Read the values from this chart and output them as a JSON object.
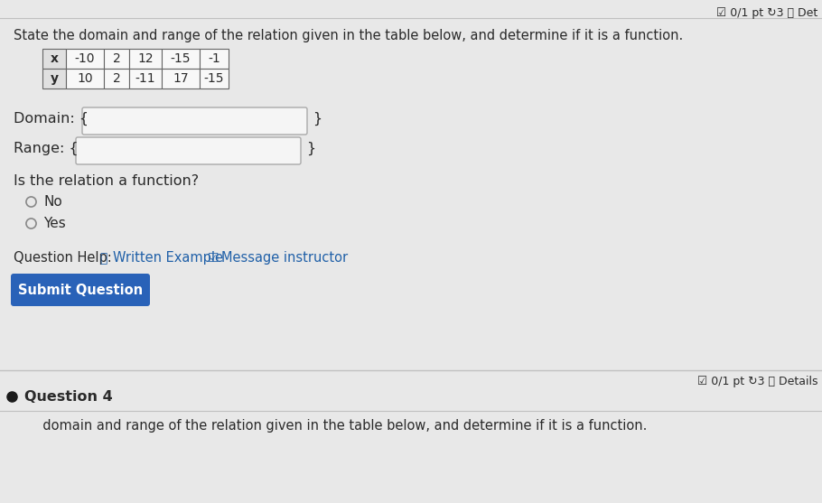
{
  "bg_color": "#e8e8e8",
  "title_text": "State the domain and range of the relation given in the table below, and determine if it is a function.",
  "table_headers": [
    "x",
    "-10",
    "2",
    "12",
    "-15",
    "-1"
  ],
  "table_row2": [
    "y",
    "10",
    "2",
    "-11",
    "17",
    "-15"
  ],
  "domain_label": "Domain: {",
  "domain_close": "}",
  "range_label": "Range: {",
  "range_close": "}",
  "function_question": "Is the relation a function?",
  "radio_no": "No",
  "radio_yes": "Yes",
  "question_help_text": "Question Help:",
  "written_example": "Written Example",
  "message_instructor": "Message instructor",
  "submit_button_text": "Submit Question",
  "submit_button_color": "#2962b8",
  "top_right_text": "☑ 0/1 pt ↻3 ⓘ Det",
  "bottom_right_text": "☑ 0/1 pt ↻3 ⓘ Details",
  "question4_text": "Question 4",
  "bottom_text": "       domain and range of the relation given in the table below, and determine if it is a function.",
  "input_box_color": "#f5f5f5",
  "input_border_color": "#aaaaaa",
  "table_border_color": "#666666",
  "text_color": "#2a2a2a",
  "header_bg": "#e0e0e0",
  "separator_color": "#c0c0c0",
  "link_color": "#2060a8",
  "q4_bullet_color": "#1a1a1a"
}
